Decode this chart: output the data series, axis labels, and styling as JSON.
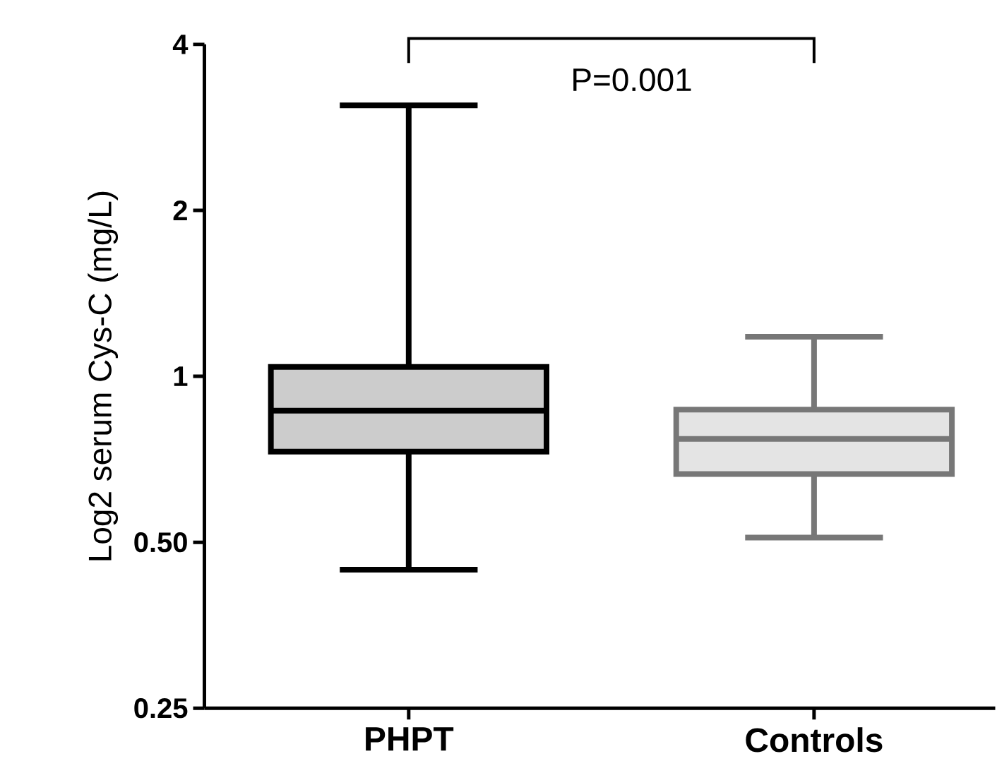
{
  "chart_data": {
    "type": "box",
    "ylabel": "Log2 serum Cys-C (mg/L)",
    "categories": [
      "PHPT",
      "Controls"
    ],
    "boxes": [
      {
        "low": 0.446,
        "q1": 0.73,
        "median": 0.866,
        "q3": 1.04,
        "high": 3.1
      },
      {
        "low": 0.51,
        "q1": 0.665,
        "median": 0.77,
        "q3": 0.87,
        "high": 1.18
      }
    ],
    "colors": [
      "#000000",
      "#777777"
    ],
    "log": "y",
    "ylim": [
      0.25,
      4
    ],
    "yticks": [
      0.25,
      {
        "value": 0.5,
        "label": "0.50"
      },
      1,
      2,
      4
    ],
    "annotations": [
      "P=0.001"
    ]
  }
}
